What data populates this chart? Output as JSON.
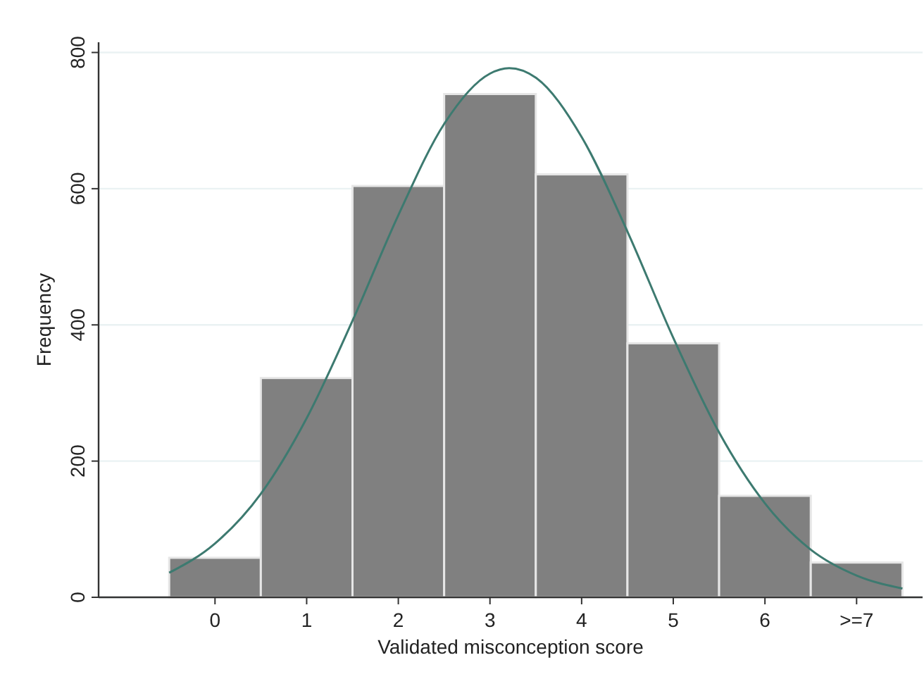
{
  "chart_data": {
    "type": "histogram",
    "xlabel": "Validated misconception score",
    "ylabel": "Frequency",
    "bins": [
      -0.5,
      0.5,
      1.5,
      2.5,
      3.5,
      4.5,
      5.5,
      6.5,
      7.5
    ],
    "values": [
      58,
      322,
      604,
      739,
      621,
      373,
      149,
      51
    ],
    "color": "#808080",
    "series": [
      {
        "type": "line",
        "color": "#3d7a70",
        "x": [
          -0.5,
          0,
          0.5,
          1,
          1.5,
          2,
          2.5,
          3,
          3.21,
          3.5,
          4,
          4.5,
          5,
          5.5,
          6,
          6.5,
          7,
          7.5
        ],
        "values": [
          36,
          79,
          152,
          263,
          406,
          561,
          695,
          769,
          777,
          763,
          676,
          537,
          381,
          242,
          138,
          70,
          32,
          13
        ]
      }
    ],
    "xlim": [
      -1.27,
      7.72
    ],
    "xticks": [
      0,
      1,
      2,
      3,
      4,
      5,
      6,
      {
        "value": 7,
        "label": ">=7"
      }
    ],
    "ylim": [
      0,
      815
    ],
    "yticks": [
      0,
      200,
      400,
      600,
      800
    ],
    "grid": "y"
  }
}
